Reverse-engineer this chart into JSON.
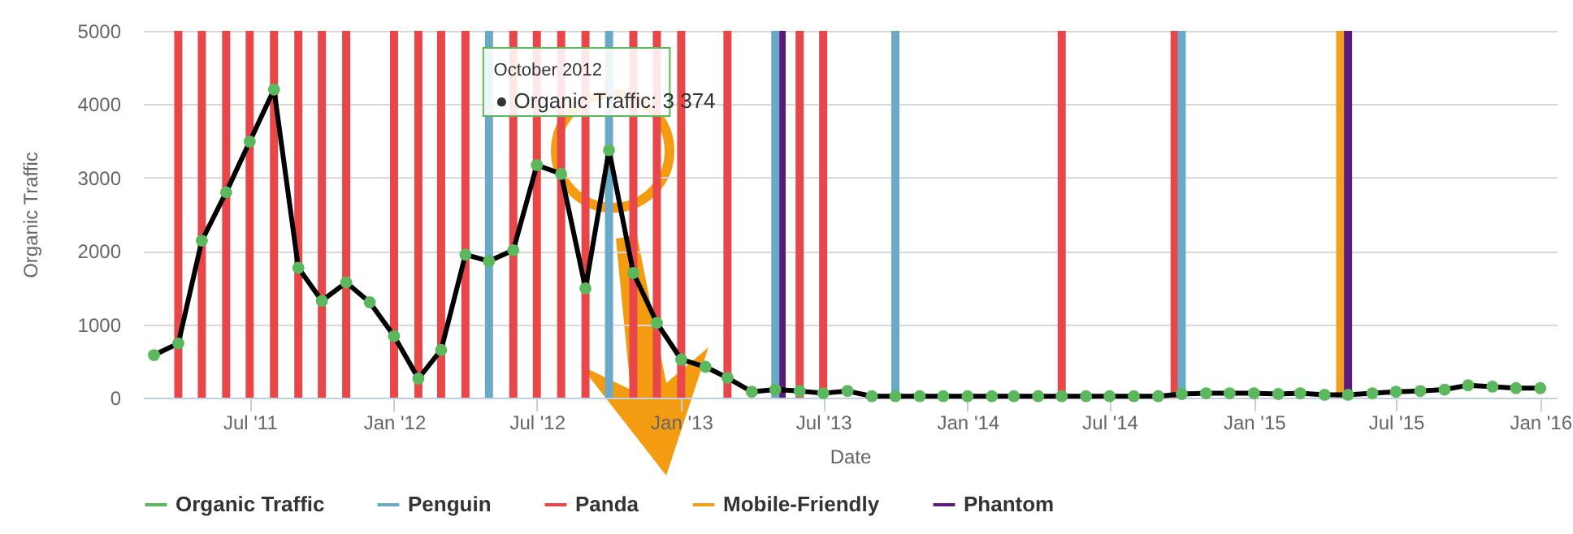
{
  "chart_data": {
    "type": "line",
    "xlabel": "Date",
    "ylabel": "Organic Traffic",
    "x": [
      "2011-03",
      "2011-04",
      "2011-05",
      "2011-06",
      "2011-07",
      "2011-08",
      "2011-09",
      "2011-10",
      "2011-11",
      "2011-12",
      "2012-01",
      "2012-02",
      "2012-03",
      "2012-04",
      "2012-05",
      "2012-06",
      "2012-07",
      "2012-08",
      "2012-09",
      "2012-10",
      "2012-11",
      "2012-12",
      "2013-01",
      "2013-02",
      "2013-03",
      "2013-04",
      "2013-05",
      "2013-06",
      "2013-07",
      "2013-08",
      "2013-09",
      "2013-10",
      "2013-11",
      "2013-12",
      "2014-01",
      "2014-02",
      "2014-03",
      "2014-04",
      "2014-05",
      "2014-06",
      "2014-07",
      "2014-08",
      "2014-09",
      "2014-10",
      "2014-11",
      "2014-12",
      "2015-01",
      "2015-02",
      "2015-03",
      "2015-04",
      "2015-05",
      "2015-06",
      "2015-07",
      "2015-08",
      "2015-09",
      "2015-10",
      "2015-11",
      "2015-12",
      "2016-01"
    ],
    "series": [
      {
        "name": "Organic Traffic",
        "color": "#5cb85c",
        "values": [
          580,
          740,
          2140,
          2800,
          3490,
          4200,
          1770,
          1320,
          1570,
          1300,
          840,
          260,
          650,
          1950,
          1860,
          2010,
          3170,
          3050,
          1490,
          3374,
          1700,
          1020,
          520,
          420,
          270,
          80,
          110,
          90,
          60,
          90,
          20,
          20,
          20,
          20,
          20,
          20,
          20,
          20,
          20,
          20,
          20,
          20,
          20,
          50,
          60,
          60,
          60,
          50,
          60,
          40,
          40,
          60,
          80,
          90,
          110,
          170,
          150,
          130,
          130
        ]
      }
    ],
    "xlim": [
      "2011-02-15",
      "2016-01-22"
    ],
    "xticks": [
      {
        "value": "2011-07",
        "label": "Jul '11"
      },
      {
        "value": "2012-01",
        "label": "Jan '12"
      },
      {
        "value": "2012-07",
        "label": "Jul '12"
      },
      {
        "value": "2013-01",
        "label": "Jan '13"
      },
      {
        "value": "2013-07",
        "label": "Jul '13"
      },
      {
        "value": "2014-01",
        "label": "Jan '14"
      },
      {
        "value": "2014-07",
        "label": "Jul '14"
      },
      {
        "value": "2015-01",
        "label": "Jan '15"
      },
      {
        "value": "2015-07",
        "label": "Jul '15"
      },
      {
        "value": "2016-01",
        "label": "Jan '16"
      }
    ],
    "ylim": [
      0,
      5000
    ],
    "yticks": [
      0,
      1000,
      2000,
      3000,
      4000,
      5000
    ],
    "grid": "y",
    "marker": "circle",
    "legend": "bottom",
    "ref_lines": [
      {
        "axis": "x",
        "value": "2012-05",
        "label": "Penguin",
        "color": "#6aaac8"
      },
      {
        "axis": "x",
        "value": "2011-04",
        "label": "Panda",
        "color": "#e8474a"
      },
      {
        "axis": "x",
        "value": "2015-04-21",
        "label": "Mobile-Friendly",
        "color": "#f0a01e"
      },
      {
        "axis": "x",
        "value": "2013-05-09",
        "label": "Phantom",
        "color": "#5c1a7a"
      },
      {
        "axis": "x",
        "value": "2011-05",
        "color": "#e8474a"
      },
      {
        "axis": "x",
        "value": "2011-06",
        "color": "#e8474a"
      },
      {
        "axis": "x",
        "value": "2011-07",
        "color": "#e8474a"
      },
      {
        "axis": "x",
        "value": "2011-08",
        "color": "#e8474a"
      },
      {
        "axis": "x",
        "value": "2011-09",
        "color": "#e8474a"
      },
      {
        "axis": "x",
        "value": "2011-10",
        "color": "#e8474a"
      },
      {
        "axis": "x",
        "value": "2011-11",
        "color": "#e8474a"
      },
      {
        "axis": "x",
        "value": "2012-01",
        "color": "#e8474a"
      },
      {
        "axis": "x",
        "value": "2012-02",
        "color": "#e8474a"
      },
      {
        "axis": "x",
        "value": "2012-03",
        "color": "#e8474a"
      },
      {
        "axis": "x",
        "value": "2012-04",
        "color": "#e8474a"
      },
      {
        "axis": "x",
        "value": "2012-06",
        "color": "#e8474a"
      },
      {
        "axis": "x",
        "value": "2012-07",
        "color": "#e8474a"
      },
      {
        "axis": "x",
        "value": "2012-08",
        "color": "#e8474a"
      },
      {
        "axis": "x",
        "value": "2012-09",
        "color": "#e8474a"
      },
      {
        "axis": "x",
        "value": "2012-10",
        "color": "#6aaac8"
      },
      {
        "axis": "x",
        "value": "2012-11",
        "color": "#e8474a"
      },
      {
        "axis": "x",
        "value": "2012-12",
        "color": "#e8474a"
      },
      {
        "axis": "x",
        "value": "2013-01",
        "color": "#e8474a"
      },
      {
        "axis": "x",
        "value": "2013-03",
        "color": "#e8474a"
      },
      {
        "axis": "x",
        "value": "2013-05",
        "color": "#6aaac8"
      },
      {
        "axis": "x",
        "value": "2013-06",
        "color": "#e8474a"
      },
      {
        "axis": "x",
        "value": "2013-07",
        "color": "#e8474a"
      },
      {
        "axis": "x",
        "value": "2013-10",
        "color": "#6aaac8"
      },
      {
        "axis": "x",
        "value": "2014-05",
        "color": "#e8474a"
      },
      {
        "axis": "x",
        "value": "2014-09-22",
        "color": "#e8474a"
      },
      {
        "axis": "x",
        "value": "2014-10",
        "color": "#6aaac8"
      },
      {
        "axis": "x",
        "value": "2015-05",
        "color": "#5c1a7a"
      }
    ],
    "annotations": [
      "October 2012",
      {
        "text": "● Organic Traffic: 3 374",
        "x": "2012-10",
        "y": 3374
      }
    ]
  }
}
